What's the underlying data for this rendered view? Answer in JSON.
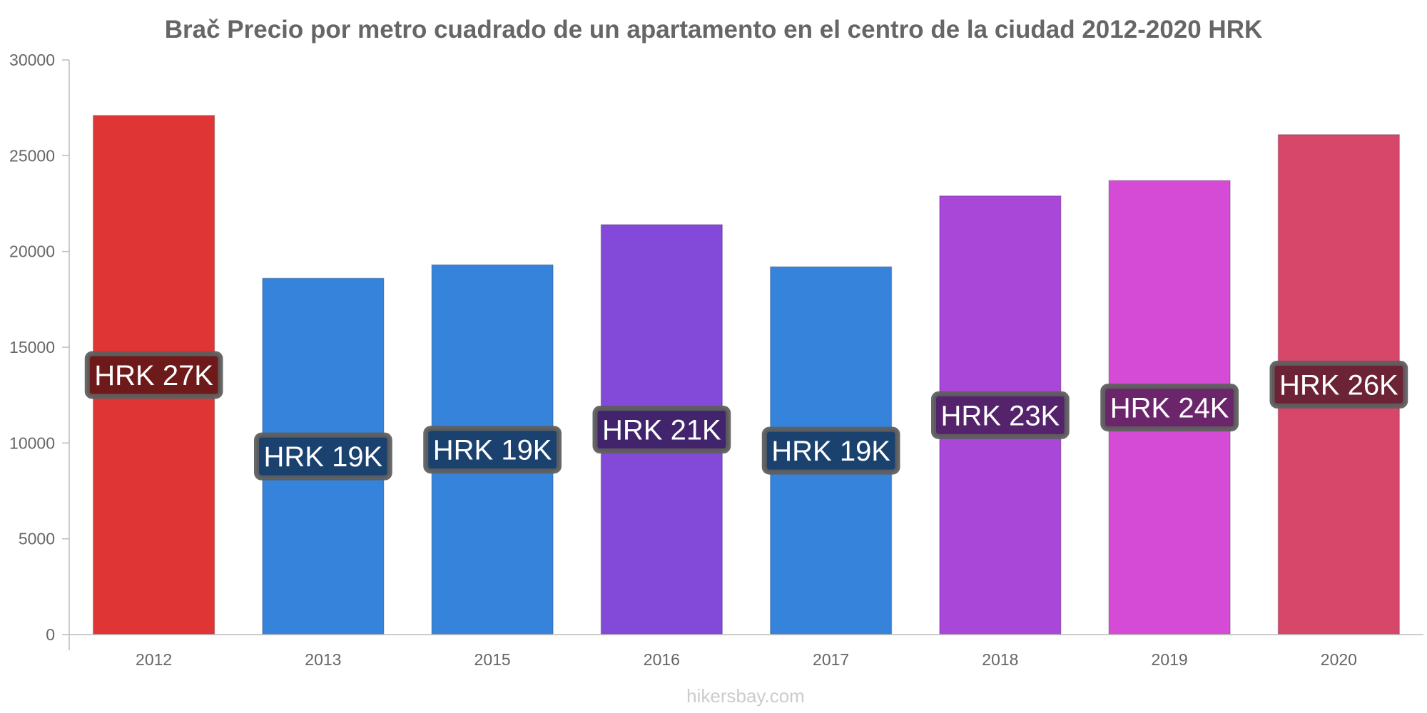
{
  "chart_data": {
    "type": "bar",
    "title": "Brač Precio por metro cuadrado de un apartamento en el centro de la ciudad 2012-2020 HRK",
    "categories": [
      "2012",
      "2013",
      "2015",
      "2016",
      "2017",
      "2018",
      "2019",
      "2020"
    ],
    "values": [
      27100,
      18600,
      19300,
      21400,
      19200,
      22900,
      23700,
      26100
    ],
    "data_labels": [
      "HRK 27K",
      "HRK 19K",
      "HRK 19K",
      "HRK 21K",
      "HRK 19K",
      "HRK 23K",
      "HRK 24K",
      "HRK 26K"
    ],
    "bar_colors": [
      "#e03535",
      "#3683dc",
      "#3683dc",
      "#8349d8",
      "#3683dc",
      "#a947d8",
      "#d64bd6",
      "#d6476a"
    ],
    "label_bg_colors": [
      "#6e1a1a",
      "#1b416e",
      "#1b416e",
      "#41246c",
      "#1b416e",
      "#54236c",
      "#6b256b",
      "#6b2335"
    ],
    "y_ticks": [
      0,
      5000,
      10000,
      15000,
      20000,
      25000,
      30000
    ],
    "y_tick_labels": [
      "0",
      "5000",
      "10000",
      "15000",
      "20000",
      "25000",
      "30000"
    ],
    "ylim": [
      0,
      30000
    ],
    "xlabel": "",
    "ylabel": "",
    "grid": false,
    "legend": "none"
  },
  "watermark": "hikersbay.com"
}
